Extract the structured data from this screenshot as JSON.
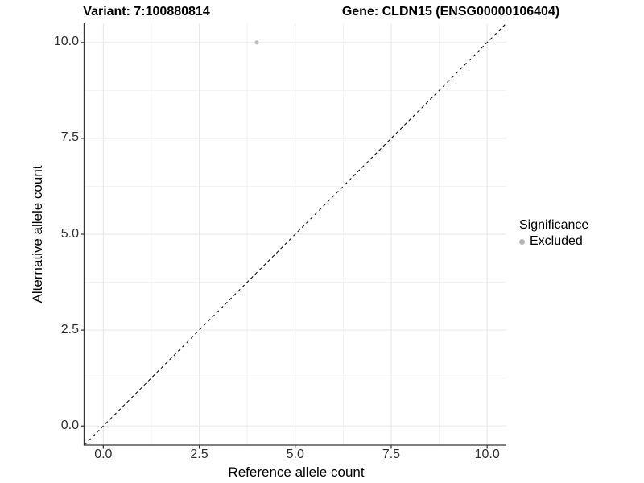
{
  "figure": {
    "titles": {
      "variant": "Variant: 7:100880814",
      "gene": "Gene: CLDN15 (ENSG00000106404)"
    }
  },
  "axes": {
    "x_label": "Reference allele count",
    "y_label": "Alternative allele count"
  },
  "legend": {
    "title": "Significance",
    "items": [
      {
        "label": "Excluded",
        "color": "#b5b5b5"
      }
    ]
  },
  "colors": {
    "background": "#ffffff",
    "grid_major": "#e7e7e7",
    "grid_minor": "#f3f3f3",
    "axis_line": "#333333",
    "tick_mark": "#333333",
    "reference_line": "#111111",
    "point": "#bdbdbd"
  },
  "chart_data": {
    "type": "scatter",
    "title": "Variant: 7:100880814   |   Gene: CLDN15 (ENSG00000106404)",
    "xlabel": "Reference allele count",
    "ylabel": "Alternative allele count",
    "xlim": [
      -0.5,
      10.5
    ],
    "ylim": [
      -0.5,
      10.5
    ],
    "x_ticks": [
      0.0,
      2.5,
      5.0,
      7.5,
      10.0
    ],
    "y_ticks": [
      0.0,
      2.5,
      5.0,
      7.5,
      10.0
    ],
    "x_tick_labels": [
      "0.0",
      "2.5",
      "5.0",
      "7.5",
      "10.0"
    ],
    "y_tick_labels": [
      "0.0",
      "2.5",
      "5.0",
      "7.5",
      "10.0"
    ],
    "minor_ticks": [
      1.25,
      3.75,
      6.25,
      8.75
    ],
    "grid": true,
    "legend_position": "right",
    "series": [
      {
        "name": "Excluded",
        "color": "#bdbdbd",
        "points": [
          {
            "x": 4,
            "y": 10
          }
        ]
      }
    ],
    "reference_line": {
      "type": "identity",
      "style": "dashed",
      "color": "#111111"
    }
  }
}
